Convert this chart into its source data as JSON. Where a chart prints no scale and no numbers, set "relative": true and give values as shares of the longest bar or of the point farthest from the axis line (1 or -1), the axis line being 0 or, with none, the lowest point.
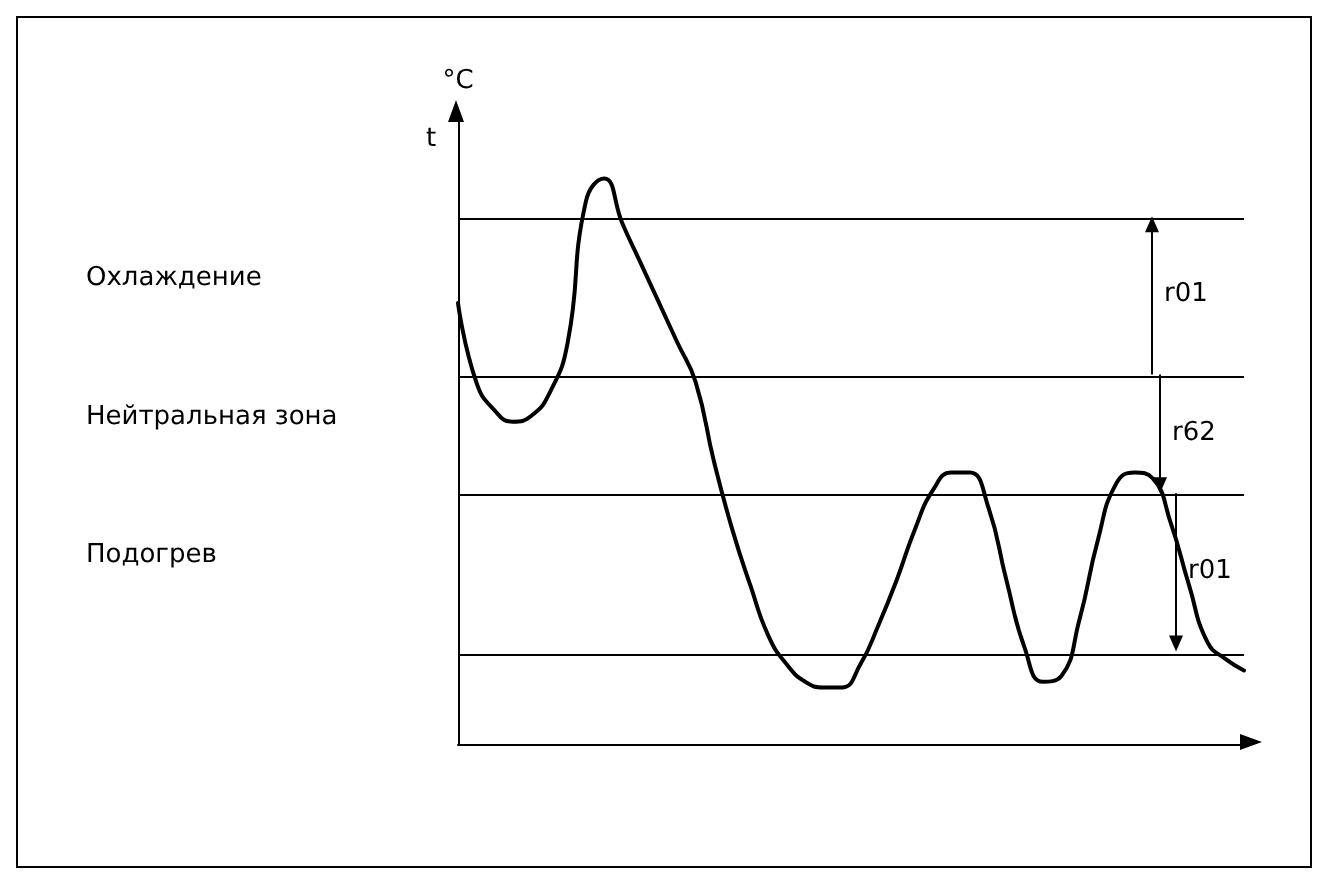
{
  "chart_data": {
    "type": "line",
    "relative": true,
    "ylabel": "°C",
    "grid": false,
    "categories": [
      null,
      null,
      null,
      null,
      null,
      null,
      null,
      null,
      null,
      null,
      null,
      null,
      null,
      null,
      null,
      null,
      null,
      null,
      null,
      null,
      null,
      null,
      null,
      null,
      null,
      null,
      null,
      null,
      null,
      null,
      null,
      null,
      null,
      null,
      null,
      null,
      null,
      null,
      null,
      null,
      null,
      null,
      null,
      null
    ],
    "series": [
      {
        "color": "#000000",
        "values": [
          0.78,
          0.64,
          0.59,
          0.57,
          0.58,
          0.62,
          0.71,
          0.96,
          1.0,
          0.92,
          0.85,
          0.78,
          0.71,
          0.64,
          0.5,
          0.38,
          0.28,
          0.19,
          0.14,
          0.11,
          0.1,
          0.1,
          0.14,
          0.21,
          0.29,
          0.38,
          0.45,
          0.48,
          0.48,
          0.42,
          0.29,
          0.17,
          0.11,
          0.12,
          0.22,
          0.36,
          0.46,
          0.48,
          0.47,
          0.39,
          0.28,
          0.18,
          0.15,
          0.13
        ]
      }
    ],
    "ref_lines": [
      {
        "axis": "y",
        "value": 0.93,
        "color": "#000000"
      },
      {
        "axis": "y",
        "value": 0.65,
        "color": "#000000"
      },
      {
        "axis": "y",
        "value": 0.44,
        "color": "#000000"
      },
      {
        "axis": "y",
        "value": 0.16,
        "color": "#000000"
      }
    ],
    "annotations": [
      "Охлаждение",
      "Нейтральная зона",
      "Подогрев",
      "t",
      "r01",
      "r62",
      "r01"
    ]
  }
}
